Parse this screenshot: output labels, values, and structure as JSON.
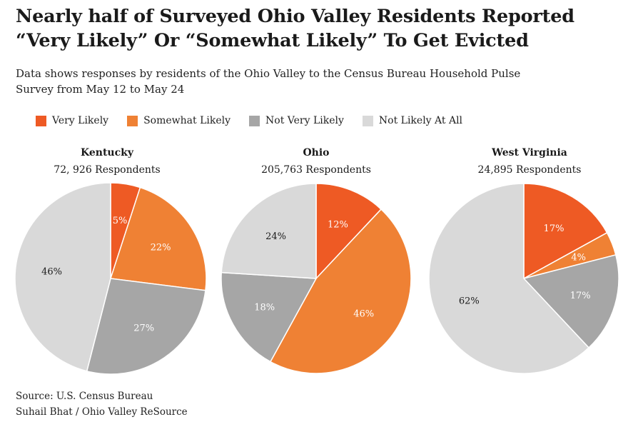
{
  "title_line1": "Nearly half of Surveyed Ohio Valley Residents Reported",
  "title_line2": "“Very Likely” Or “Somewhat Likely” To Get Evicted",
  "subtitle_line1": "Data shows responses by residents of the Ohio Valley to the Census Bureau Household Pulse",
  "subtitle_line2": "Survey from May 12 to May 24",
  "source_line1": "Source: U.S. Census Bureau",
  "source_line2": "Suhail Bhat / Ohio Valley ReSource",
  "colors": {
    "very_likely": "#ee5a24",
    "somewhat_likely": "#ef8134",
    "not_very_likely": "#a6a6a6",
    "not_likely_at_all": "#d9d9d9"
  },
  "chart_data": {
    "type": "pie",
    "legend_position": "top-left",
    "categories": [
      "Very Likely",
      "Somewhat Likely",
      "Not Very Likely",
      "Not Likely At All"
    ],
    "pies": [
      {
        "name": "Kentucky",
        "respondents_label": "72, 926 Respondents",
        "values": [
          5,
          22,
          27,
          46
        ],
        "labels": [
          "5%",
          "22%",
          "27%",
          "46%"
        ]
      },
      {
        "name": "Ohio",
        "respondents_label": "205,763 Respondents",
        "values": [
          12,
          46,
          18,
          24
        ],
        "labels": [
          "12%",
          "46%",
          "18%",
          "24%"
        ]
      },
      {
        "name": "West Virginia",
        "respondents_label": "24,895 Respondents",
        "values": [
          17,
          4,
          17,
          62
        ],
        "labels": [
          "17%",
          "4%",
          "17%",
          "62%"
        ]
      }
    ]
  }
}
